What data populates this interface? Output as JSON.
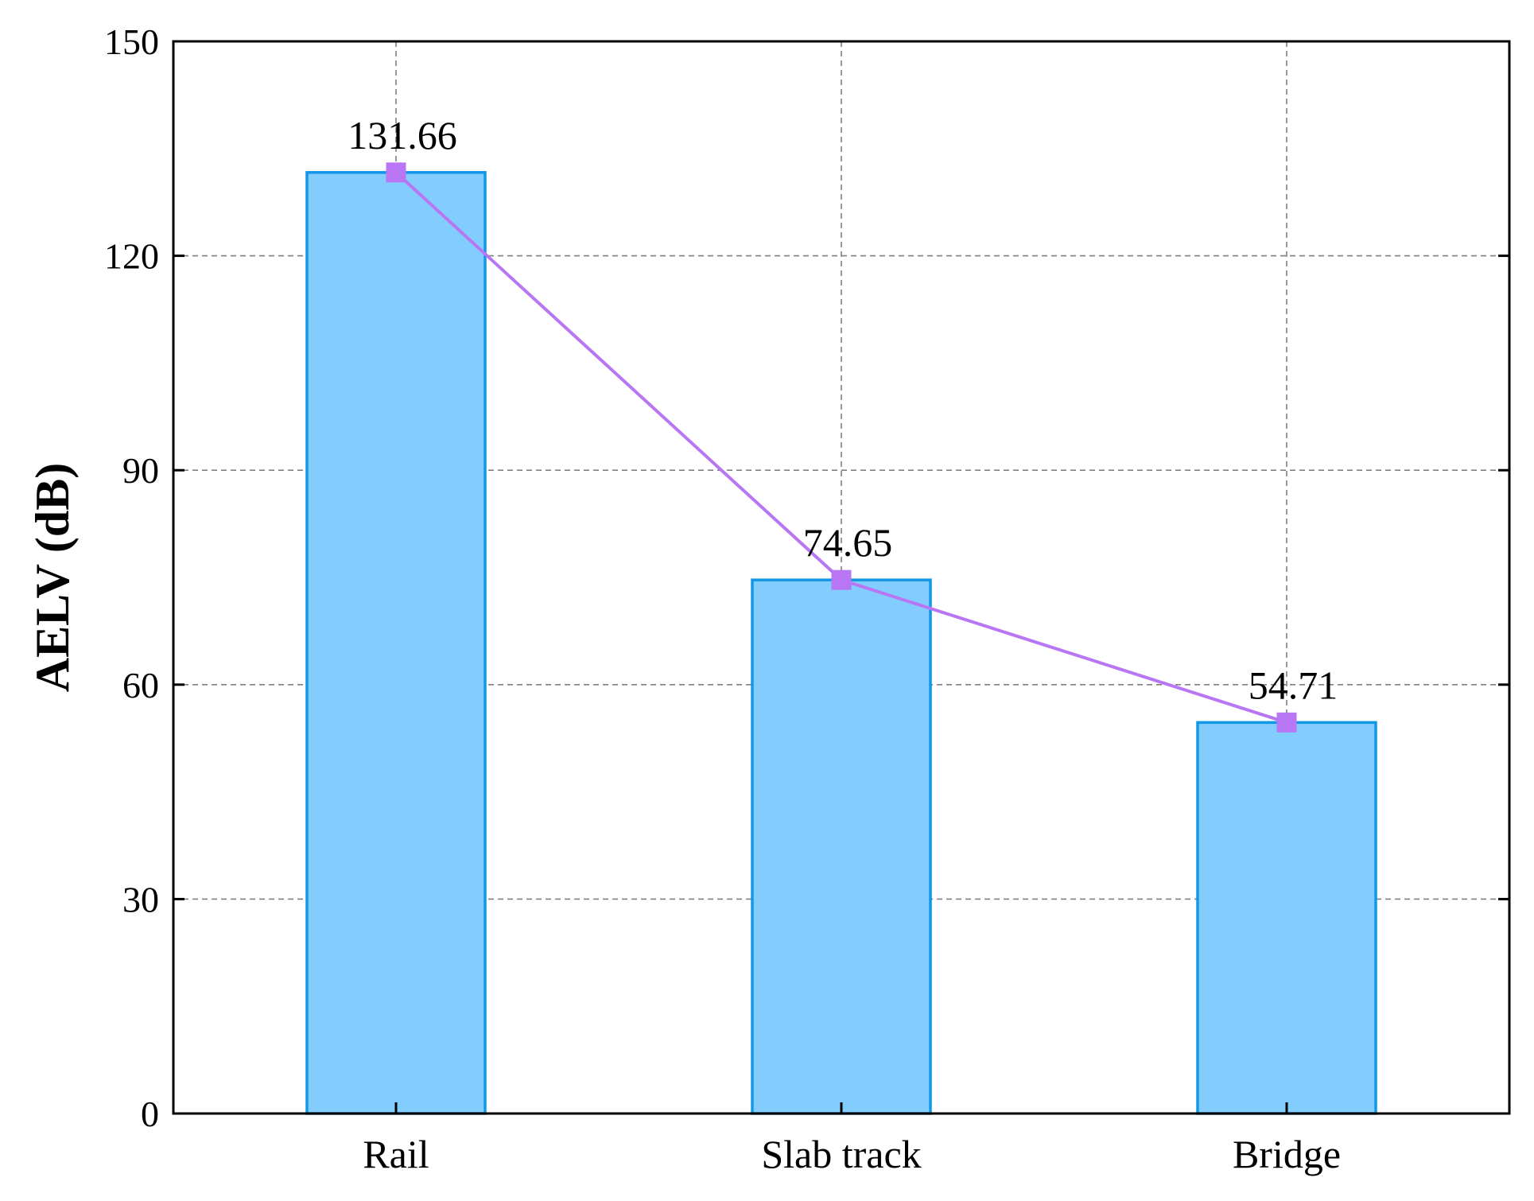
{
  "chart_data": {
    "type": "bar",
    "categories": [
      "Rail",
      "Slab track",
      "Bridge"
    ],
    "values": [
      131.66,
      74.65,
      54.71
    ],
    "data_labels": [
      "131.66",
      "74.65",
      "54.71"
    ],
    "overlay_line": {
      "type": "line",
      "marker": "square",
      "values": [
        131.66,
        74.65,
        54.71
      ]
    },
    "title": "",
    "xlabel": "",
    "ylabel": "AELV (dB)",
    "ylim": [
      0,
      150
    ],
    "yticks": [
      0,
      30,
      60,
      90,
      120,
      150
    ],
    "ytick_labels": [
      "0",
      "30",
      "60",
      "90",
      "120",
      "150"
    ],
    "grid": true,
    "colors": {
      "bar_fill": "#82cdfd",
      "bar_edge": "#1496e6",
      "line": "#b876f5",
      "marker": "#b876f5",
      "grid": "#808080",
      "axis": "#000000"
    }
  }
}
